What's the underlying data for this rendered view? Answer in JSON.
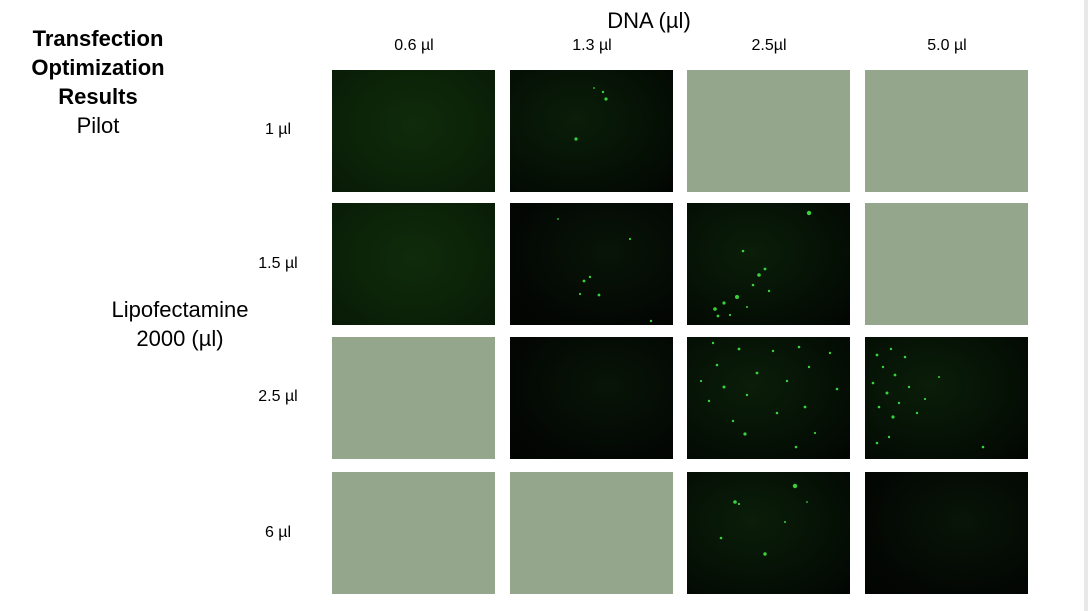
{
  "title": {
    "line1": "Transfection",
    "line2": "Optimization",
    "line3": "Results",
    "subtitle": "Pilot"
  },
  "dna_axis": {
    "title": "DNA (µl)",
    "columns": [
      "0.6 µl",
      "1.3 µl",
      "2.5µl",
      "5.0 µl"
    ]
  },
  "lipo_axis": {
    "title_line1": "Lipofectamine",
    "title_line2": "2000 (µl)",
    "rows": [
      "1 µl",
      "1.5 µl",
      "2.5 µl",
      "6 µl"
    ]
  },
  "colors": {
    "placeholder": "#94a78d",
    "fluorescence": "#3ad23a"
  },
  "grid": {
    "cells": [
      [
        "image-dim-green",
        "image-sparse",
        "placeholder",
        "placeholder"
      ],
      [
        "image-dim-green",
        "image-sparse",
        "image-moderate",
        "placeholder"
      ],
      [
        "placeholder",
        "image-dark",
        "image-dense",
        "image-dense"
      ],
      [
        "placeholder",
        "placeholder",
        "image-moderate",
        "image-dark"
      ]
    ]
  }
}
